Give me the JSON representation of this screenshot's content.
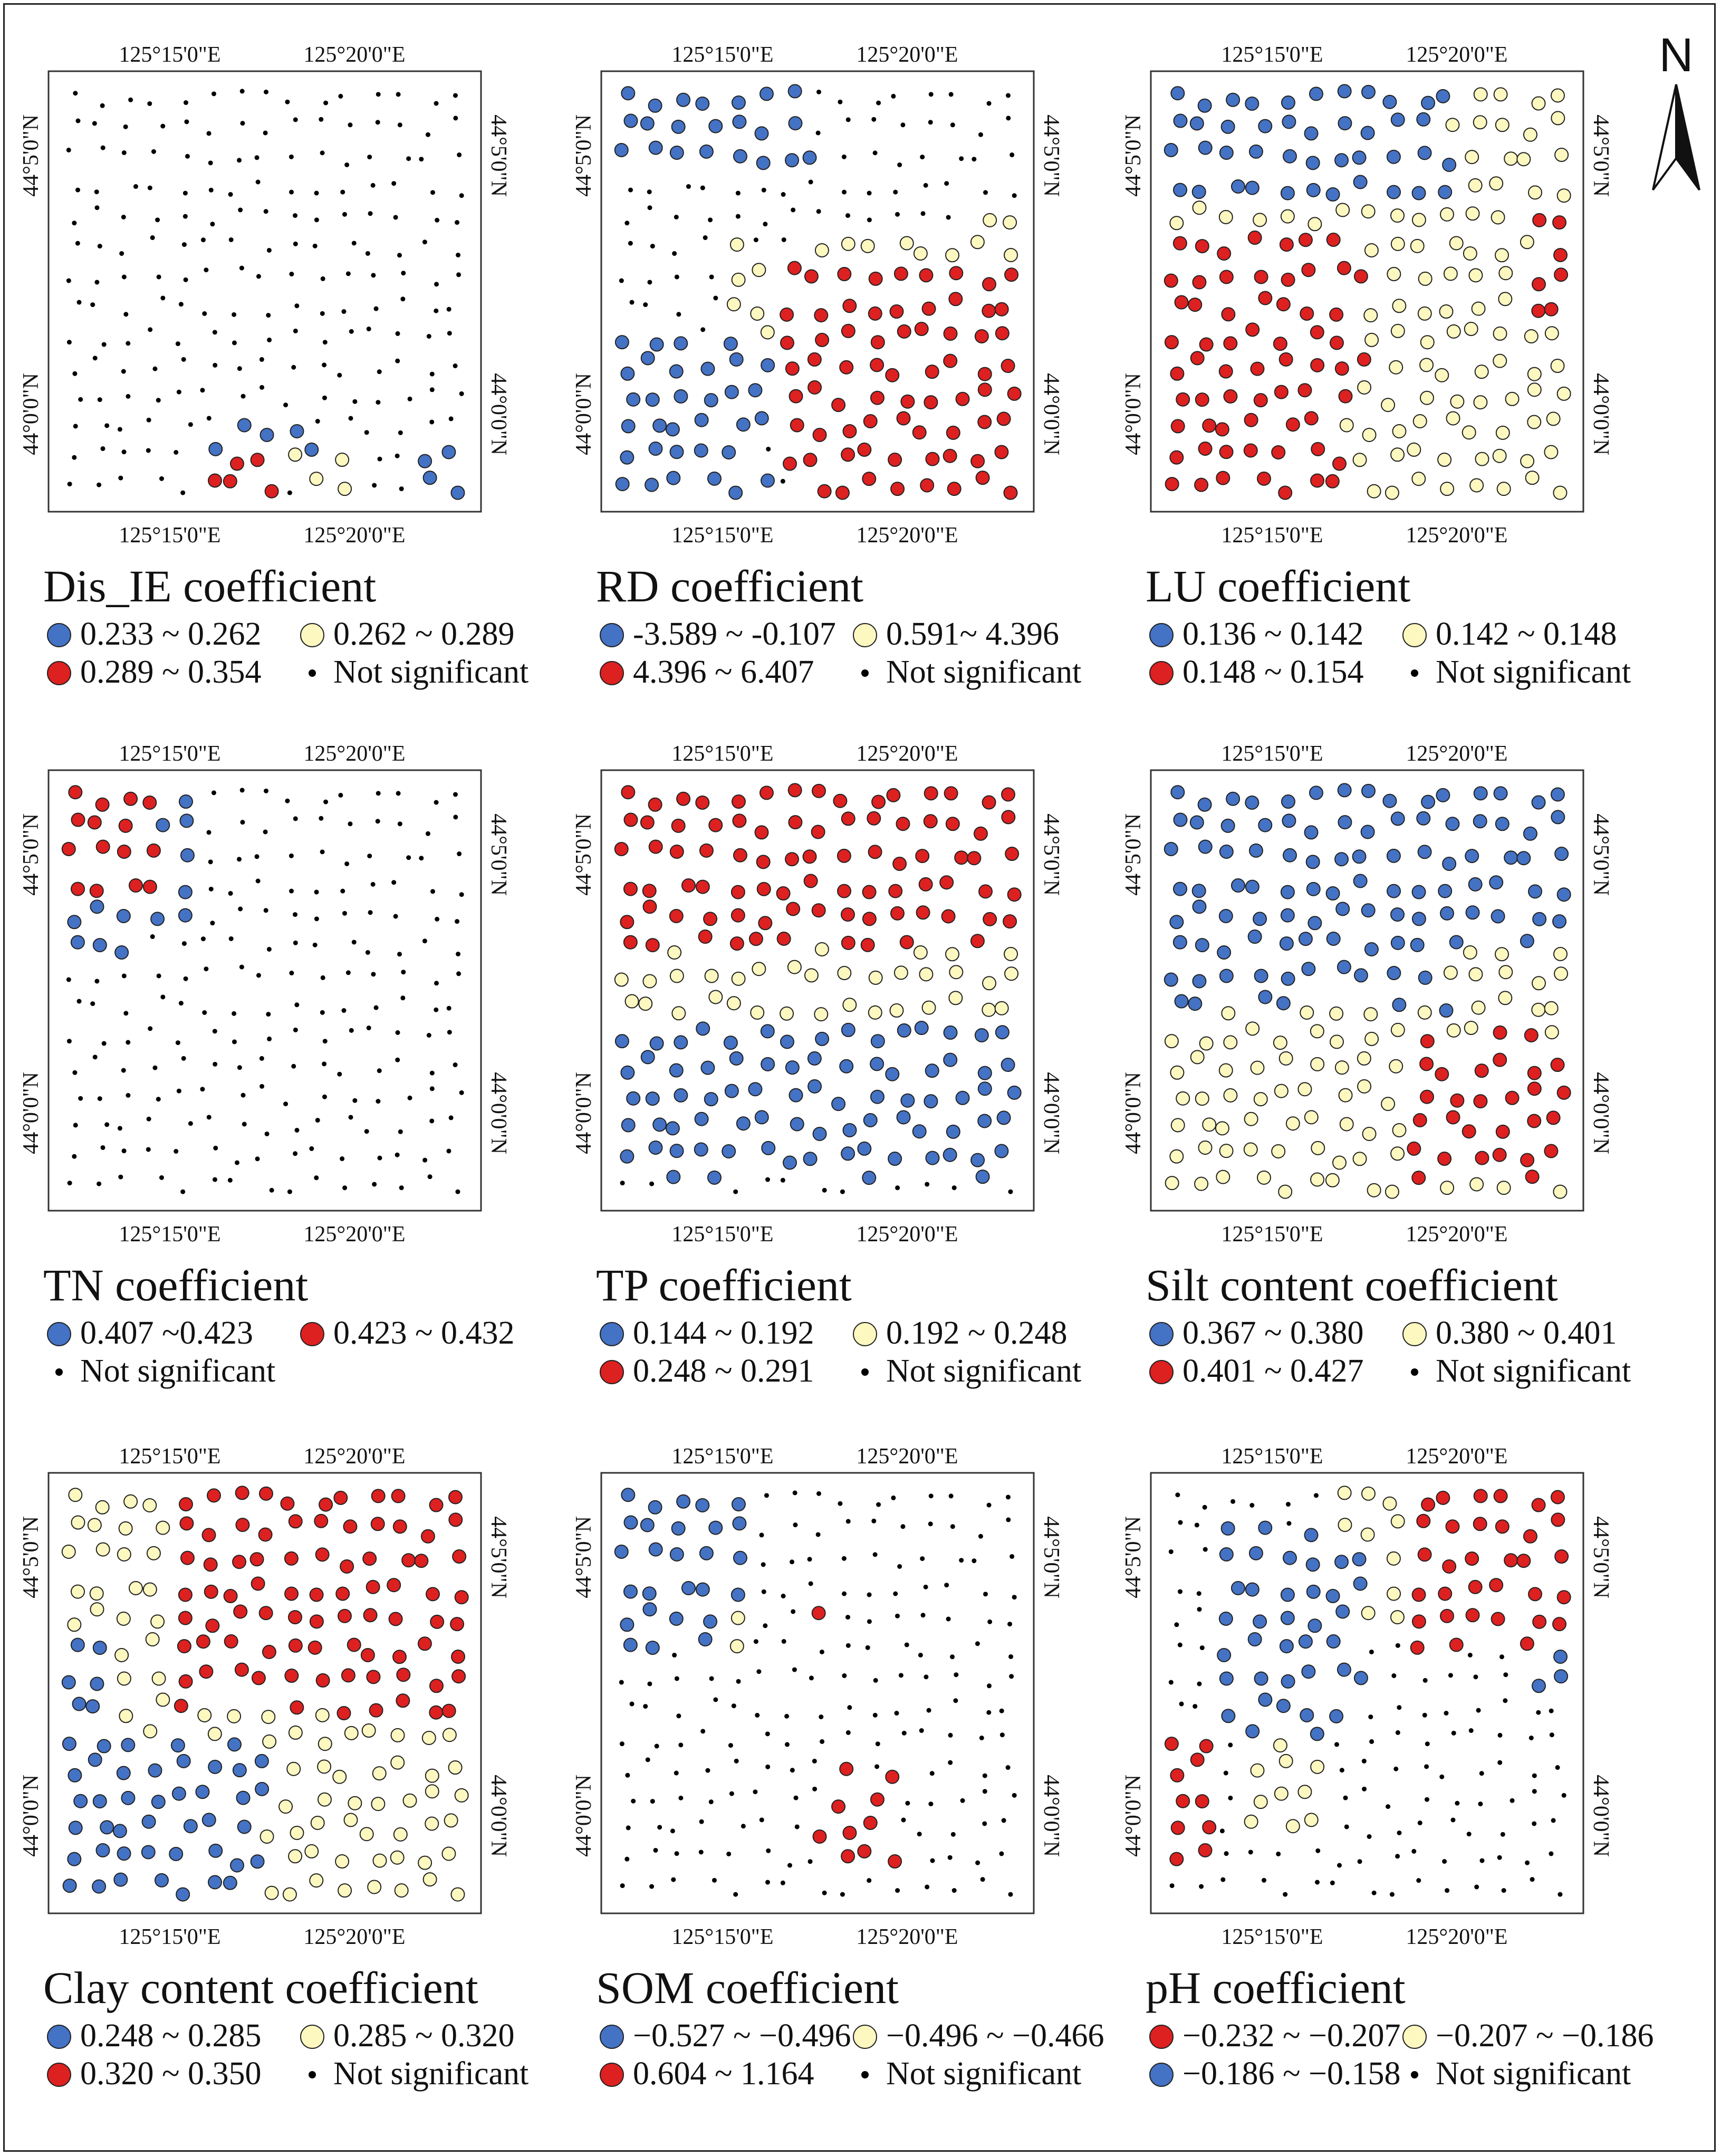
{
  "axis_labels": {
    "lon1": "125°15'0\"E",
    "lon2": "125°20'0\"E",
    "lat1": "44°5'0\"N",
    "lat2": "44°0'0\"N"
  },
  "north_label": "N",
  "colors": {
    "blue": "#4472c4",
    "yellow": "#fdf8c0",
    "red": "#dd2020",
    "dot": "#000000"
  },
  "panels": [
    {
      "id": "dis-ie",
      "title": "Dis_IE coefficient",
      "class_pattern": "none",
      "legend": [
        {
          "symbol": "blue",
          "label": "0.233 ~ 0.262"
        },
        {
          "symbol": "yellow",
          "label": "0.262 ~ 0.289"
        },
        {
          "symbol": "red",
          "label": "0.289 ~ 0.354"
        },
        {
          "symbol": "dot",
          "label": "Not significant"
        }
      ]
    },
    {
      "id": "rd",
      "title": "RD coefficient",
      "class_pattern": "rd",
      "legend": [
        {
          "symbol": "blue",
          "label": "-3.589 ~ -0.107"
        },
        {
          "symbol": "yellow",
          "label": "0.591~ 4.396"
        },
        {
          "symbol": "red",
          "label": "4.396 ~ 6.407"
        },
        {
          "symbol": "dot",
          "label": "Not significant"
        }
      ]
    },
    {
      "id": "lu",
      "title": "LU coefficient",
      "class_pattern": "lu",
      "legend": [
        {
          "symbol": "blue",
          "label": "0.136 ~ 0.142"
        },
        {
          "symbol": "yellow",
          "label": "0.142 ~ 0.148"
        },
        {
          "symbol": "red",
          "label": "0.148 ~ 0.154"
        },
        {
          "symbol": "dot",
          "label": "Not significant"
        }
      ]
    },
    {
      "id": "tn",
      "title": "TN coefficient",
      "class_pattern": "tn",
      "legend": [
        {
          "symbol": "blue",
          "label": "0.407 ~0.423"
        },
        {
          "symbol": "red",
          "label": "0.423 ~ 0.432"
        },
        {
          "symbol": "dot",
          "label": "Not significant"
        }
      ]
    },
    {
      "id": "tp",
      "title": "TP coefficient",
      "class_pattern": "tp",
      "legend": [
        {
          "symbol": "blue",
          "label": "0.144 ~ 0.192"
        },
        {
          "symbol": "yellow",
          "label": "0.192 ~ 0.248"
        },
        {
          "symbol": "red",
          "label": "0.248 ~ 0.291"
        },
        {
          "symbol": "dot",
          "label": "Not significant"
        }
      ]
    },
    {
      "id": "silt",
      "title": "Silt content coefficient",
      "class_pattern": "silt",
      "legend": [
        {
          "symbol": "blue",
          "label": "0.367 ~ 0.380"
        },
        {
          "symbol": "yellow",
          "label": "0.380 ~ 0.401"
        },
        {
          "symbol": "red",
          "label": "0.401 ~ 0.427"
        },
        {
          "symbol": "dot",
          "label": "Not significant"
        }
      ]
    },
    {
      "id": "clay",
      "title": "Clay content coefficient",
      "class_pattern": "clay",
      "legend": [
        {
          "symbol": "blue",
          "label": "0.248 ~ 0.285"
        },
        {
          "symbol": "yellow",
          "label": "0.285 ~ 0.320"
        },
        {
          "symbol": "red",
          "label": "0.320 ~ 0.350"
        },
        {
          "symbol": "dot",
          "label": "Not significant"
        }
      ]
    },
    {
      "id": "som",
      "title": "SOM coefficient",
      "class_pattern": "som",
      "legend": [
        {
          "symbol": "blue",
          "label": "−0.527 ~ −0.496"
        },
        {
          "symbol": "yellow",
          "label": "−0.496 ~ −0.466"
        },
        {
          "symbol": "red",
          "label": "0.604 ~ 1.164"
        },
        {
          "symbol": "dot",
          "label": "Not significant"
        }
      ]
    },
    {
      "id": "ph",
      "title": "pH coefficient",
      "class_pattern": "ph",
      "legend": [
        {
          "symbol": "red",
          "label": "−0.232 ~ −0.207"
        },
        {
          "symbol": "yellow",
          "label": "−0.207 ~ −0.186"
        },
        {
          "symbol": "blue",
          "label": "−0.186 ~ −0.158"
        },
        {
          "symbol": "dot",
          "label": "Not significant"
        }
      ]
    }
  ]
}
